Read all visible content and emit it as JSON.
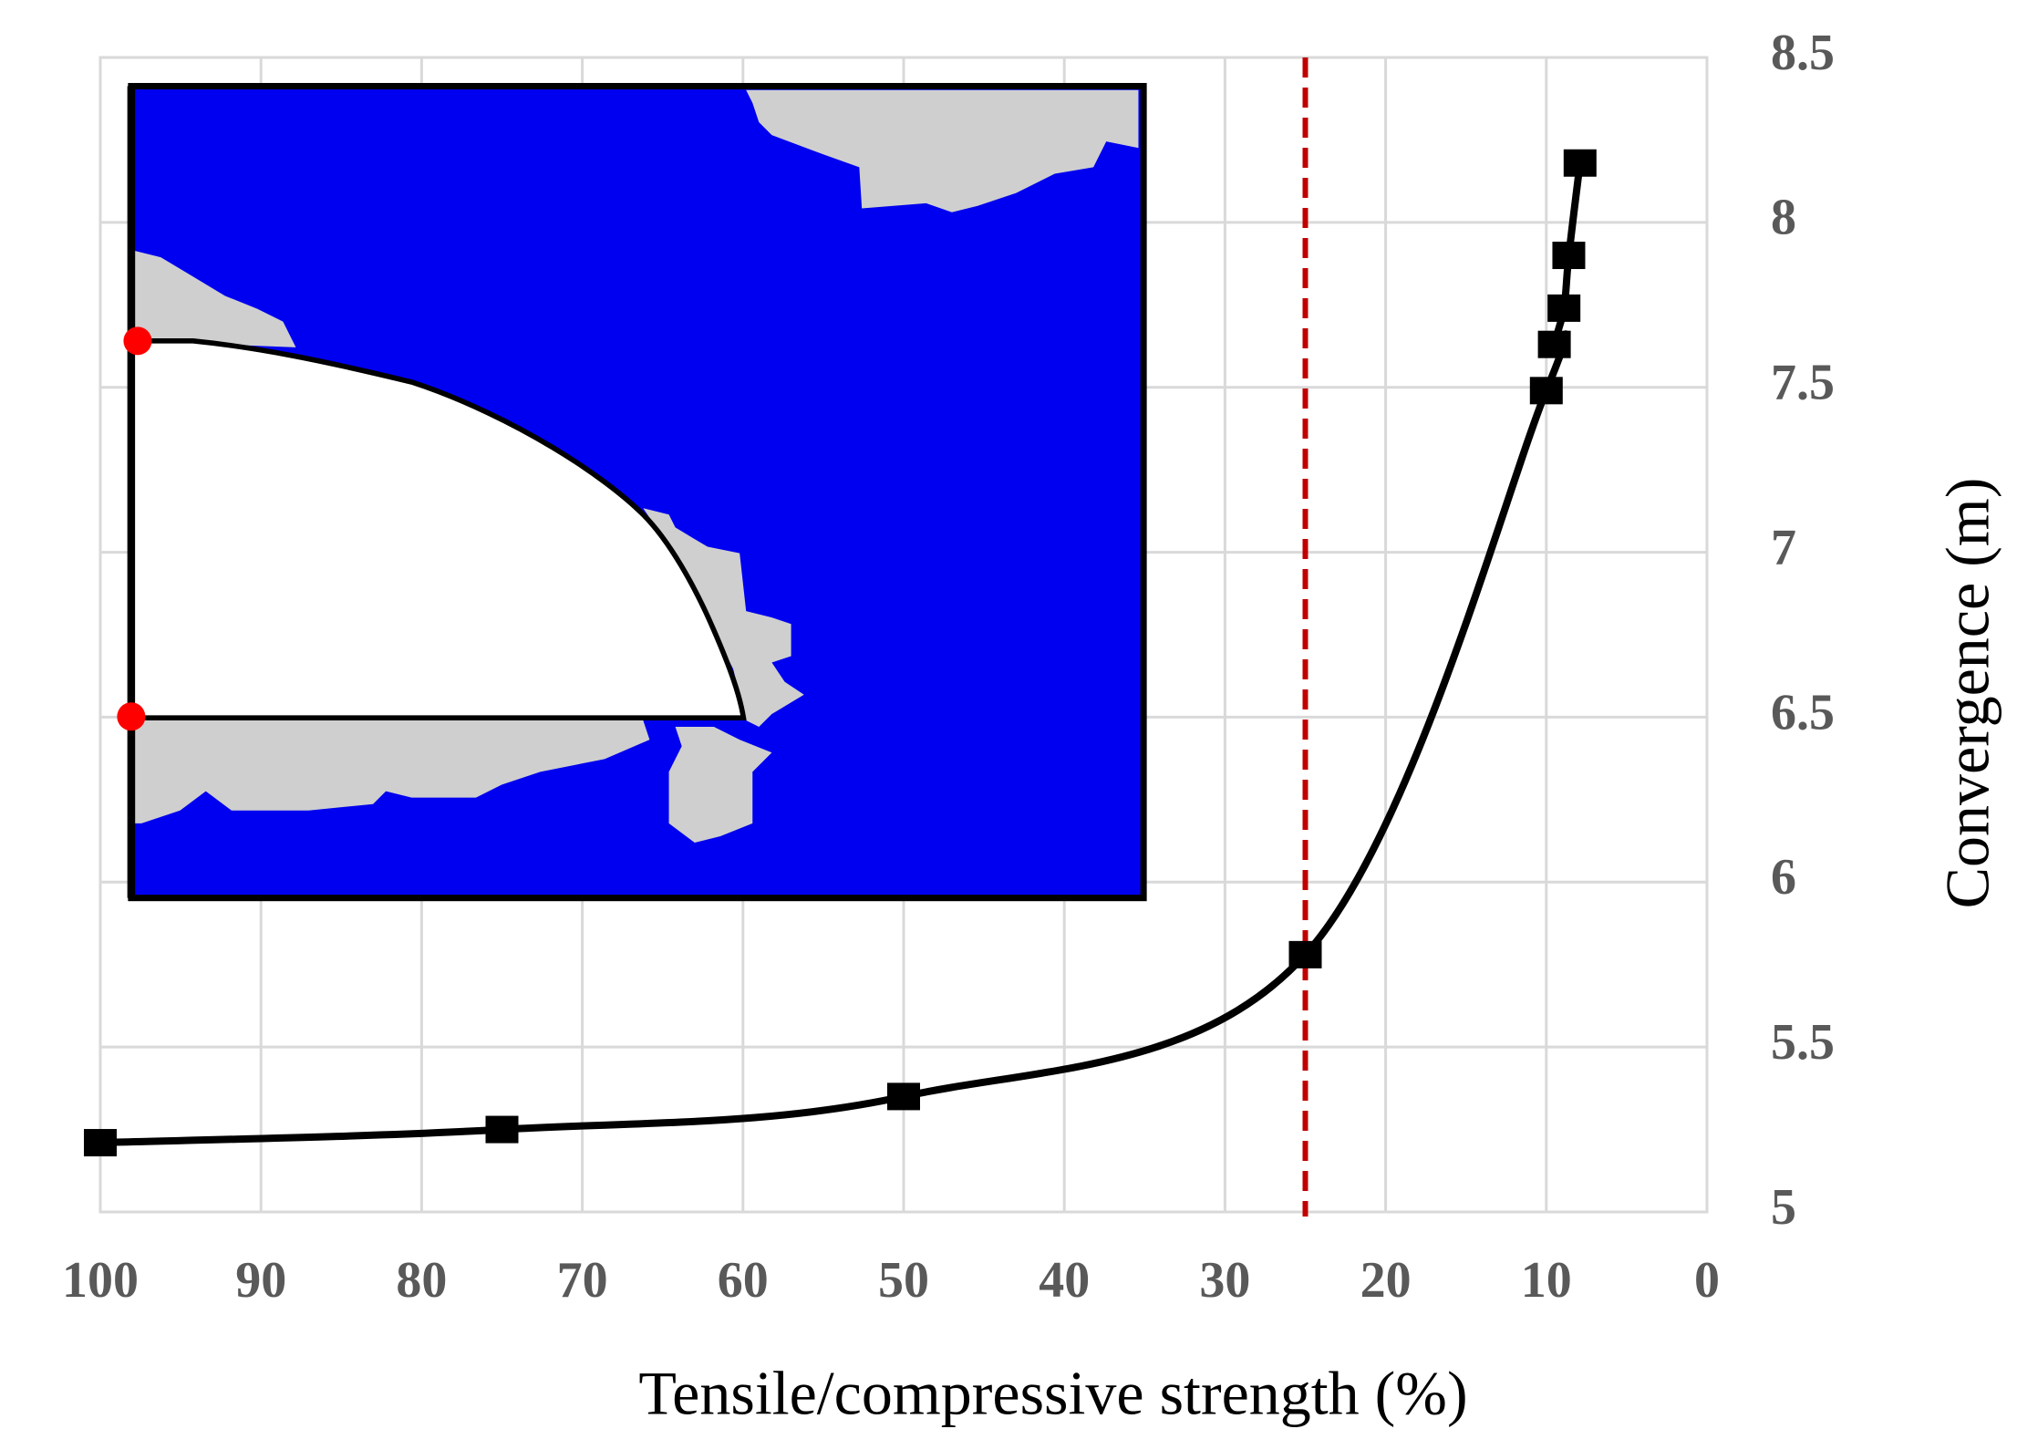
{
  "chart_data": {
    "type": "line",
    "x_label": "Tensile/compressive strength (%)",
    "y_label": "Convergence (m)",
    "x": [
      100,
      75,
      50,
      25,
      10,
      9.5,
      8.9,
      8.6,
      7.9
    ],
    "series": [
      {
        "color": "#000000",
        "values": [
          5.21,
          5.25,
          5.35,
          5.78,
          7.49,
          7.63,
          7.74,
          7.9,
          8.18
        ]
      }
    ],
    "xlim": [
      100,
      0
    ],
    "xticks": [
      100,
      90,
      80,
      70,
      60,
      50,
      40,
      30,
      20,
      10,
      0
    ],
    "ylim": [
      5,
      8.5
    ],
    "yticks": [
      5,
      5.5,
      6,
      6.5,
      7,
      7.5,
      8,
      8.5
    ],
    "grid": true,
    "vline": {
      "x": 25,
      "color": "#c00000"
    }
  }
}
